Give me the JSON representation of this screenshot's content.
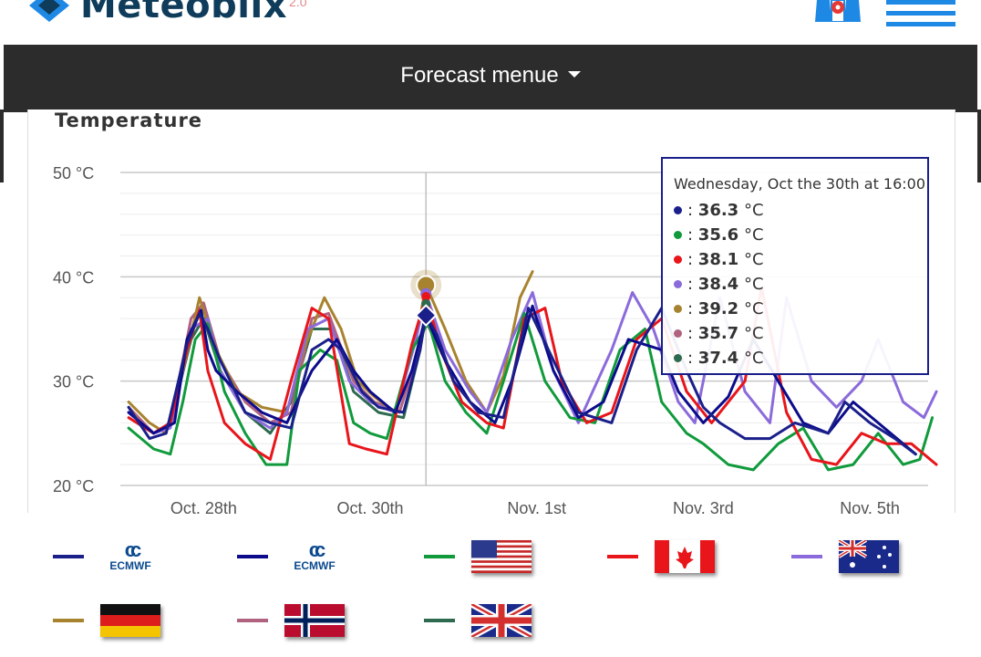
{
  "header": {
    "logo_text": "Meteoblix",
    "logo_sup": "2.0",
    "map_icon": "map-pin-icon",
    "menu_icon": "hamburger-icon"
  },
  "nav": {
    "label": "Forecast menue",
    "caret_icon": "caret-down-icon"
  },
  "colors": {
    "ecmwf_hres": "#1a1f8a",
    "ecmwf_ens": "#0b0b8c",
    "usa": "#109a3c",
    "canada": "#e8151b",
    "australia": "#8b6bdb",
    "germany": "#a8832f",
    "norway": "#b0627e",
    "uk": "#2d6a4f"
  },
  "chart_data": {
    "type": "line",
    "title": "Temperature",
    "y_unit": "°C",
    "ylim": [
      20,
      50
    ],
    "yticks": [
      "20 °C",
      "30 °C",
      "40 °C",
      "50 °C"
    ],
    "xticks": [
      "Oct. 28th",
      "Oct. 30th",
      "Nov. 1st",
      "Nov. 3rd",
      "Nov. 5th"
    ],
    "x_unit": "days from start of axis (Oct 27 00:00)",
    "xlim": [
      0,
      9.7
    ],
    "xtick_positions": [
      1.0,
      3.0,
      5.0,
      7.0,
      9.0
    ],
    "crosshair_x": 3.67,
    "grid": true,
    "series": [
      {
        "key": "ecmwf_hres",
        "icon": "ecmwf",
        "points": [
          [
            0.1,
            27.5
          ],
          [
            0.35,
            24.5
          ],
          [
            0.55,
            25
          ],
          [
            0.8,
            33.5
          ],
          [
            0.95,
            36.5
          ],
          [
            1.05,
            35
          ],
          [
            1.2,
            32
          ],
          [
            1.5,
            27
          ],
          [
            1.8,
            26
          ],
          [
            2.05,
            25.5
          ],
          [
            2.3,
            33
          ],
          [
            2.5,
            34
          ],
          [
            2.65,
            33
          ],
          [
            2.9,
            29
          ],
          [
            3.1,
            27.5
          ],
          [
            3.4,
            27
          ],
          [
            3.6,
            33
          ],
          [
            3.67,
            36.3
          ],
          [
            3.8,
            34.5
          ],
          [
            4.0,
            30
          ],
          [
            4.3,
            27
          ],
          [
            4.6,
            26.5
          ],
          [
            4.9,
            37
          ],
          [
            5.2,
            32
          ],
          [
            5.5,
            27
          ],
          [
            5.9,
            26
          ],
          [
            6.2,
            33
          ],
          [
            6.5,
            37
          ],
          [
            6.8,
            31
          ],
          [
            7.0,
            27.5
          ],
          [
            7.2,
            26
          ],
          [
            7.5,
            24.5
          ],
          [
            7.8,
            24.5
          ],
          [
            8.1,
            26
          ],
          [
            8.5,
            25
          ],
          [
            8.7,
            28
          ],
          [
            9.0,
            26
          ],
          [
            9.3,
            24.5
          ],
          [
            9.55,
            23
          ]
        ]
      },
      {
        "key": "ecmwf_ens",
        "icon": "ecmwf",
        "points": [
          [
            0.1,
            27
          ],
          [
            0.4,
            25
          ],
          [
            0.65,
            26
          ],
          [
            0.8,
            34
          ],
          [
            0.97,
            36.8
          ],
          [
            1.05,
            33
          ],
          [
            1.15,
            31
          ],
          [
            1.4,
            29
          ],
          [
            1.7,
            27
          ],
          [
            2.0,
            26
          ],
          [
            2.3,
            31
          ],
          [
            2.6,
            34
          ],
          [
            2.8,
            31
          ],
          [
            3.0,
            29
          ],
          [
            3.3,
            27
          ],
          [
            3.5,
            31
          ],
          [
            3.67,
            36.3
          ],
          [
            3.9,
            32
          ],
          [
            4.2,
            28
          ],
          [
            4.5,
            26
          ],
          [
            4.7,
            30
          ],
          [
            4.95,
            37.2
          ],
          [
            5.2,
            31
          ],
          [
            5.5,
            26.5
          ],
          [
            5.8,
            28
          ],
          [
            6.1,
            34
          ],
          [
            6.5,
            33
          ],
          [
            6.7,
            29
          ],
          [
            7.0,
            26
          ],
          [
            7.3,
            28.5
          ],
          [
            7.6,
            34
          ],
          [
            7.9,
            30
          ],
          [
            8.2,
            26
          ],
          [
            8.5,
            25
          ],
          [
            8.8,
            28
          ],
          [
            9.1,
            26
          ],
          [
            9.4,
            24
          ],
          [
            9.55,
            23
          ]
        ]
      },
      {
        "key": "usa",
        "icon": "flag-usa",
        "points": [
          [
            0.1,
            25.5
          ],
          [
            0.4,
            23.5
          ],
          [
            0.6,
            23
          ],
          [
            0.75,
            28
          ],
          [
            0.9,
            34
          ],
          [
            1.05,
            35.5
          ],
          [
            1.25,
            29
          ],
          [
            1.5,
            25
          ],
          [
            1.75,
            22
          ],
          [
            2.0,
            22
          ],
          [
            2.15,
            31
          ],
          [
            2.4,
            33
          ],
          [
            2.6,
            32
          ],
          [
            2.8,
            26
          ],
          [
            3.0,
            25
          ],
          [
            3.2,
            24.5
          ],
          [
            3.5,
            33
          ],
          [
            3.7,
            35.6
          ],
          [
            3.9,
            30
          ],
          [
            4.15,
            27
          ],
          [
            4.4,
            25
          ],
          [
            4.6,
            30
          ],
          [
            4.85,
            36.5
          ],
          [
            5.1,
            30
          ],
          [
            5.4,
            26.5
          ],
          [
            5.7,
            26
          ],
          [
            6.0,
            33
          ],
          [
            6.3,
            35
          ],
          [
            6.5,
            28
          ],
          [
            6.8,
            25
          ],
          [
            7.0,
            24
          ],
          [
            7.3,
            22
          ],
          [
            7.6,
            21.5
          ],
          [
            7.9,
            24
          ],
          [
            8.2,
            25.5
          ],
          [
            8.5,
            21.5
          ],
          [
            8.8,
            22
          ],
          [
            9.1,
            25
          ],
          [
            9.4,
            22
          ],
          [
            9.6,
            22.5
          ],
          [
            9.75,
            26.5
          ]
        ]
      },
      {
        "key": "canada",
        "icon": "flag-canada",
        "points": [
          [
            0.1,
            26.5
          ],
          [
            0.4,
            25
          ],
          [
            0.6,
            26
          ],
          [
            0.8,
            33
          ],
          [
            0.95,
            36.8
          ],
          [
            1.05,
            31
          ],
          [
            1.25,
            26
          ],
          [
            1.5,
            24
          ],
          [
            1.8,
            22.5
          ],
          [
            2.05,
            30
          ],
          [
            2.3,
            37
          ],
          [
            2.5,
            36
          ],
          [
            2.75,
            24
          ],
          [
            2.95,
            23.5
          ],
          [
            3.2,
            23
          ],
          [
            3.5,
            33.5
          ],
          [
            3.67,
            38.1
          ],
          [
            3.85,
            33
          ],
          [
            4.1,
            28
          ],
          [
            4.4,
            26
          ],
          [
            4.6,
            25.5
          ],
          [
            4.85,
            36
          ],
          [
            5.1,
            37
          ],
          [
            5.3,
            30
          ],
          [
            5.6,
            26
          ],
          [
            5.9,
            27
          ],
          [
            6.2,
            34
          ],
          [
            6.5,
            36
          ],
          [
            6.8,
            29
          ],
          [
            7.1,
            26
          ],
          [
            7.5,
            30
          ],
          [
            7.7,
            39
          ],
          [
            8.0,
            27
          ],
          [
            8.3,
            22.5
          ],
          [
            8.6,
            22
          ],
          [
            8.9,
            25
          ],
          [
            9.2,
            24
          ],
          [
            9.5,
            24
          ],
          [
            9.8,
            22
          ]
        ]
      },
      {
        "key": "australia",
        "icon": "flag-australia",
        "points": [
          [
            0.1,
            27
          ],
          [
            0.4,
            25
          ],
          [
            0.6,
            25.5
          ],
          [
            0.85,
            35
          ],
          [
            1.05,
            36
          ],
          [
            1.2,
            31
          ],
          [
            1.5,
            27
          ],
          [
            1.8,
            25.5
          ],
          [
            2.0,
            27
          ],
          [
            2.25,
            35
          ],
          [
            2.5,
            36
          ],
          [
            2.75,
            30
          ],
          [
            3.0,
            28
          ],
          [
            3.3,
            27
          ],
          [
            3.55,
            34
          ],
          [
            3.67,
            38.4
          ],
          [
            3.9,
            33
          ],
          [
            4.2,
            29
          ],
          [
            4.4,
            27
          ],
          [
            4.7,
            34
          ],
          [
            4.95,
            38.5
          ],
          [
            5.2,
            31
          ],
          [
            5.5,
            26
          ],
          [
            5.9,
            33
          ],
          [
            6.15,
            38.5
          ],
          [
            6.4,
            35
          ],
          [
            6.7,
            28
          ],
          [
            6.9,
            26
          ],
          [
            7.2,
            38
          ],
          [
            7.5,
            29
          ],
          [
            7.8,
            26
          ],
          [
            8.0,
            38
          ],
          [
            8.3,
            30
          ],
          [
            8.6,
            27.5
          ],
          [
            8.9,
            30
          ],
          [
            9.1,
            34
          ],
          [
            9.4,
            28
          ],
          [
            9.65,
            26.5
          ],
          [
            9.8,
            29
          ]
        ]
      },
      {
        "key": "germany",
        "icon": "flag-germany",
        "points": [
          [
            0.1,
            28
          ],
          [
            0.35,
            26
          ],
          [
            0.55,
            25
          ],
          [
            0.75,
            31
          ],
          [
            0.95,
            38
          ],
          [
            1.15,
            33
          ],
          [
            1.4,
            29
          ],
          [
            1.7,
            27.5
          ],
          [
            2.0,
            27
          ],
          [
            2.2,
            33
          ],
          [
            2.45,
            38
          ],
          [
            2.65,
            35
          ],
          [
            2.85,
            30
          ],
          [
            3.05,
            28.5
          ],
          [
            3.3,
            27
          ],
          [
            3.55,
            34
          ],
          [
            3.67,
            39.2
          ],
          [
            3.9,
            35
          ],
          [
            4.15,
            30
          ],
          [
            4.4,
            27
          ],
          [
            4.6,
            30.5
          ],
          [
            4.8,
            38
          ],
          [
            4.95,
            40.5
          ]
        ]
      },
      {
        "key": "norway",
        "icon": "flag-norway",
        "points": [
          [
            0.1,
            27.5
          ],
          [
            0.4,
            25
          ],
          [
            0.6,
            26
          ],
          [
            0.85,
            36
          ],
          [
            1.0,
            37.5
          ],
          [
            1.2,
            32
          ],
          [
            1.5,
            28
          ],
          [
            1.8,
            26
          ],
          [
            2.05,
            27
          ],
          [
            2.3,
            36
          ],
          [
            2.5,
            36.5
          ],
          [
            2.8,
            30
          ],
          [
            3.05,
            28
          ],
          [
            3.35,
            27
          ],
          [
            3.55,
            32
          ],
          [
            3.67,
            35.7
          ],
          [
            3.9,
            32
          ],
          [
            4.1,
            28
          ]
        ]
      },
      {
        "key": "uk",
        "icon": "flag-uk",
        "points": [
          [
            0.1,
            27
          ],
          [
            0.4,
            25
          ],
          [
            0.6,
            26
          ],
          [
            0.85,
            34
          ],
          [
            1.0,
            36
          ],
          [
            1.2,
            31
          ],
          [
            1.5,
            27
          ],
          [
            1.8,
            25
          ],
          [
            2.05,
            28
          ],
          [
            2.3,
            35
          ],
          [
            2.55,
            35
          ],
          [
            2.8,
            29
          ],
          [
            3.1,
            27
          ],
          [
            3.4,
            26.5
          ],
          [
            3.6,
            33
          ],
          [
            3.67,
            37.4
          ],
          [
            3.9,
            32
          ],
          [
            4.1,
            28
          ]
        ]
      }
    ]
  },
  "tooltip": {
    "header": "Wednesday, Oct the 30th at 16:00",
    "rows": [
      {
        "key": "ecmwf_hres",
        "value": "36.3",
        "unit": " °C"
      },
      {
        "key": "usa",
        "value": "35.6",
        "unit": " °C"
      },
      {
        "key": "canada",
        "value": "38.1",
        "unit": " °C"
      },
      {
        "key": "australia",
        "value": "38.4",
        "unit": " °C"
      },
      {
        "key": "germany",
        "value": "39.2",
        "unit": " °C"
      },
      {
        "key": "norway",
        "value": "35.7",
        "unit": " °C"
      },
      {
        "key": "uk",
        "value": "37.4",
        "unit": " °C"
      }
    ]
  },
  "legend": [
    {
      "key": "ecmwf_hres",
      "icon": "ecmwf",
      "text": "ECMWF"
    },
    {
      "key": "ecmwf_ens",
      "icon": "ecmwf",
      "text": "ECMWF"
    },
    {
      "key": "usa",
      "icon": "flag-usa"
    },
    {
      "key": "canada",
      "icon": "flag-canada"
    },
    {
      "key": "australia",
      "icon": "flag-australia"
    },
    {
      "key": "germany",
      "icon": "flag-germany"
    },
    {
      "key": "norway",
      "icon": "flag-norway"
    },
    {
      "key": "uk",
      "icon": "flag-uk"
    }
  ]
}
